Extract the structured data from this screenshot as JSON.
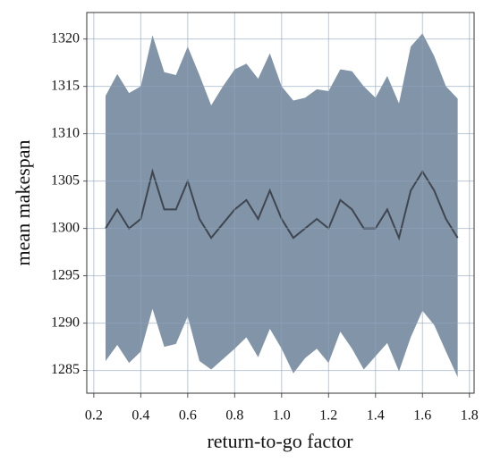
{
  "chart_data": {
    "type": "line",
    "x_label": "return-to-go factor",
    "y_label": "mean makespan",
    "x": [
      0.25,
      0.3,
      0.35,
      0.4,
      0.45,
      0.5,
      0.55,
      0.6,
      0.65,
      0.7,
      0.75,
      0.8,
      0.85,
      0.9,
      0.95,
      1.0,
      1.05,
      1.1,
      1.15,
      1.2,
      1.25,
      1.3,
      1.35,
      1.4,
      1.45,
      1.5,
      1.55,
      1.6,
      1.65,
      1.7,
      1.75
    ],
    "series": [
      {
        "color": "#3f4650",
        "band_color": "#7b8ea3",
        "values": [
          1300,
          1302,
          1300,
          1301,
          1306,
          1302,
          1302,
          1305,
          1301,
          1299,
          1300.5,
          1302,
          1303,
          1301,
          1304,
          1301,
          1299,
          1300,
          1301,
          1300,
          1303,
          1302,
          1300,
          1300,
          1302,
          1299,
          1304,
          1306,
          1304,
          1301,
          1299
        ],
        "upper": [
          1314,
          1316.3,
          1314.3,
          1315,
          1320.4,
          1316.5,
          1316.2,
          1319.2,
          1316.2,
          1313,
          1315,
          1316.8,
          1317.4,
          1315.8,
          1318.5,
          1315,
          1313.5,
          1313.8,
          1314.7,
          1314.5,
          1316.8,
          1316.6,
          1315,
          1313.8,
          1316.1,
          1313.2,
          1319.2,
          1320.6,
          1318.2,
          1315,
          1313.7
        ],
        "lower": [
          1286,
          1287.7,
          1285.8,
          1287,
          1291.5,
          1287.5,
          1287.8,
          1290.7,
          1286,
          1285.1,
          1286.2,
          1287.3,
          1288.5,
          1286.4,
          1289.4,
          1287.3,
          1284.7,
          1286.3,
          1287.3,
          1285.8,
          1289.1,
          1287.3,
          1285.1,
          1286.5,
          1287.9,
          1284.9,
          1288.5,
          1291.3,
          1289.8,
          1287,
          1284.3
        ]
      }
    ],
    "xlim": [
      0.17,
      1.82
    ],
    "ylim": [
      1282.6,
      1322.8
    ],
    "xticks": [
      0.2,
      0.4,
      0.6,
      0.8,
      {
        "value": 1,
        "label": "1.0"
      },
      1.2,
      1.4,
      1.6,
      1.8
    ],
    "yticks": [
      1285,
      1290,
      1295,
      1300,
      1305,
      1310,
      1315,
      1320
    ],
    "grid": true
  }
}
